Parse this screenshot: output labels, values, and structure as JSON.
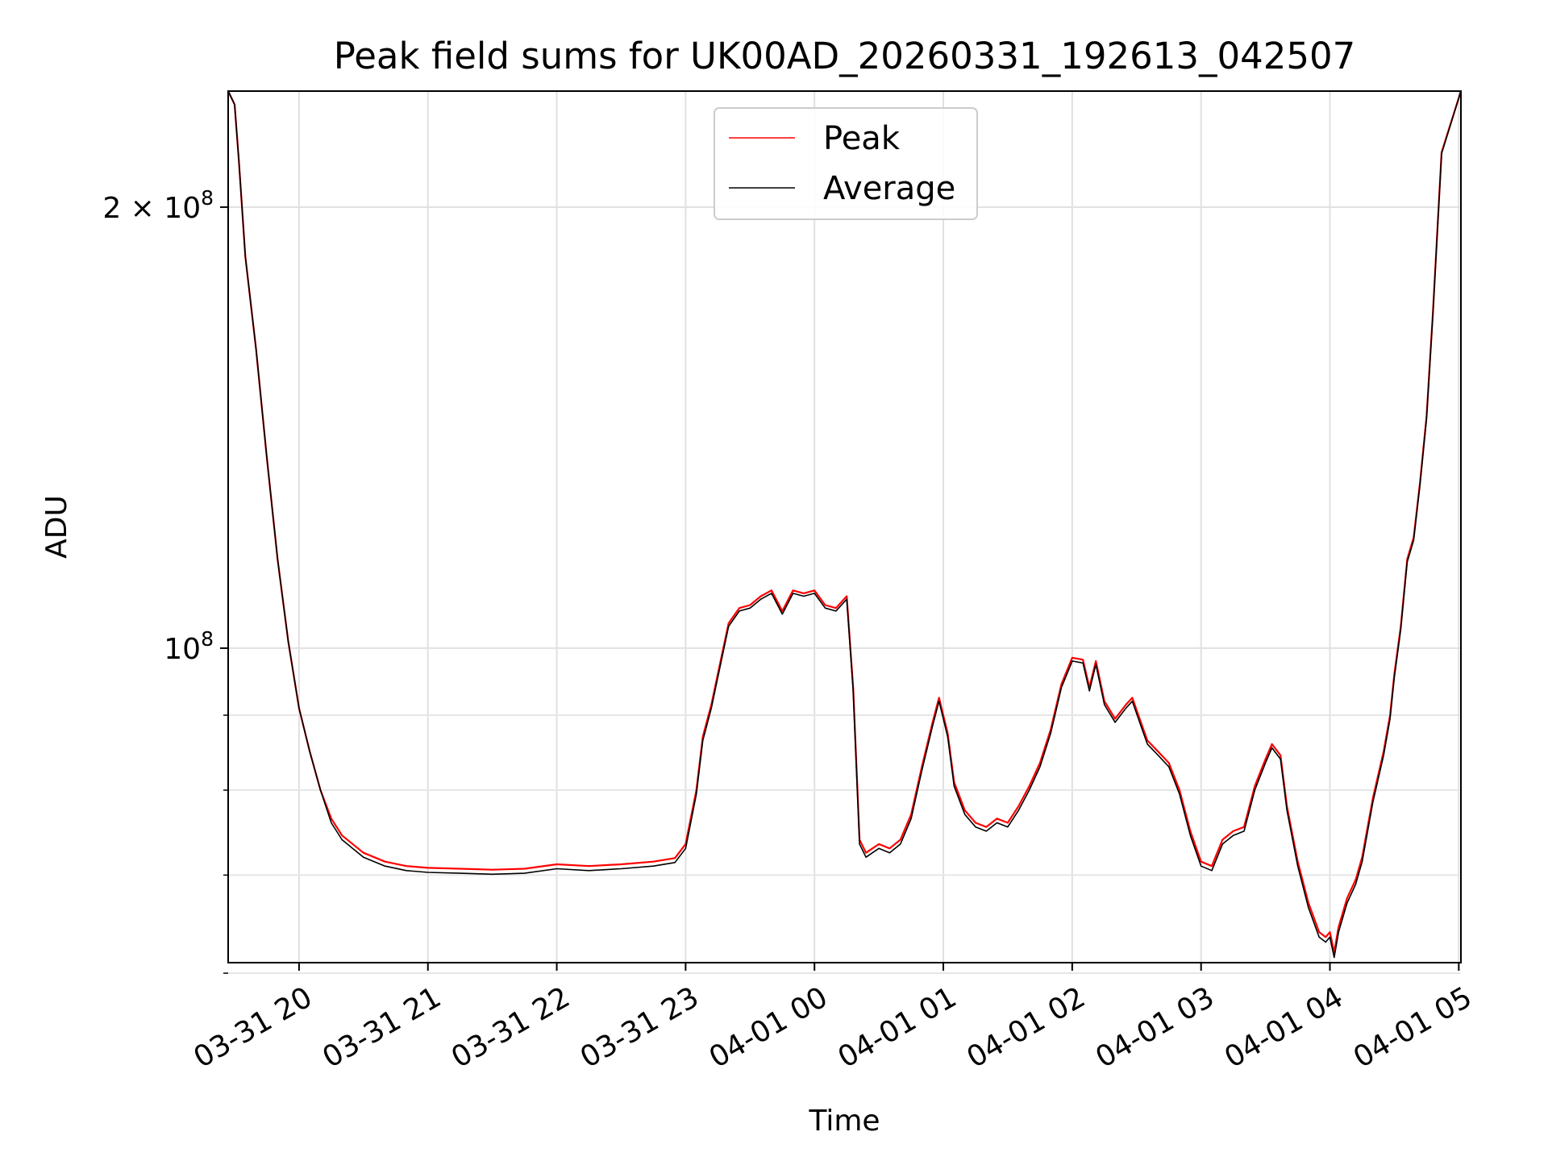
{
  "chart_data": {
    "type": "line",
    "title": "Peak field sums for UK00AD_20260331_192613_042507",
    "xlabel": "Time",
    "ylabel": "ADU",
    "y_scale": "log",
    "xlim": [
      "2026-03-31 19:27",
      "2026-04-01 05:01"
    ],
    "ylim": [
      61000000,
      240000000
    ],
    "grid": true,
    "legend_position": "top-center",
    "x_ticks": [
      "03-31 20",
      "03-31 21",
      "03-31 22",
      "03-31 23",
      "04-01 00",
      "04-01 01",
      "04-01 02",
      "04-01 03",
      "04-01 04",
      "04-01 05"
    ],
    "y_ticks": [
      {
        "value": 100000000,
        "base": "10",
        "exp": "8",
        "coef": ""
      },
      {
        "value": 200000000,
        "base": "10",
        "exp": "8",
        "coef": "2 × "
      }
    ],
    "x": [
      "2026-03-31 19:27",
      "2026-03-31 19:30",
      "2026-03-31 19:32",
      "2026-03-31 19:35",
      "2026-03-31 19:40",
      "2026-03-31 19:45",
      "2026-03-31 19:50",
      "2026-03-31 19:55",
      "2026-03-31 20:00",
      "2026-03-31 20:05",
      "2026-03-31 20:10",
      "2026-03-31 20:15",
      "2026-03-31 20:20",
      "2026-03-31 20:30",
      "2026-03-31 20:40",
      "2026-03-31 20:50",
      "2026-03-31 21:00",
      "2026-03-31 21:15",
      "2026-03-31 21:30",
      "2026-03-31 21:45",
      "2026-03-31 22:00",
      "2026-03-31 22:15",
      "2026-03-31 22:30",
      "2026-03-31 22:45",
      "2026-03-31 22:55",
      "2026-03-31 23:00",
      "2026-03-31 23:05",
      "2026-03-31 23:08",
      "2026-03-31 23:12",
      "2026-03-31 23:15",
      "2026-03-31 23:20",
      "2026-03-31 23:25",
      "2026-03-31 23:30",
      "2026-03-31 23:35",
      "2026-03-31 23:40",
      "2026-03-31 23:45",
      "2026-03-31 23:50",
      "2026-03-31 23:55",
      "2026-04-01 00:00",
      "2026-04-01 00:05",
      "2026-04-01 00:10",
      "2026-04-01 00:15",
      "2026-04-01 00:18",
      "2026-04-01 00:21",
      "2026-04-01 00:24",
      "2026-04-01 00:27",
      "2026-04-01 00:30",
      "2026-04-01 00:35",
      "2026-04-01 00:40",
      "2026-04-01 00:45",
      "2026-04-01 00:50",
      "2026-04-01 00:55",
      "2026-04-01 00:58",
      "2026-04-01 01:02",
      "2026-04-01 01:05",
      "2026-04-01 01:10",
      "2026-04-01 01:15",
      "2026-04-01 01:20",
      "2026-04-01 01:25",
      "2026-04-01 01:30",
      "2026-04-01 01:35",
      "2026-04-01 01:40",
      "2026-04-01 01:45",
      "2026-04-01 01:50",
      "2026-04-01 01:55",
      "2026-04-01 02:00",
      "2026-04-01 02:05",
      "2026-04-01 02:08",
      "2026-04-01 02:11",
      "2026-04-01 02:15",
      "2026-04-01 02:20",
      "2026-04-01 02:25",
      "2026-04-01 02:28",
      "2026-04-01 02:32",
      "2026-04-01 02:35",
      "2026-04-01 02:40",
      "2026-04-01 02:45",
      "2026-04-01 02:50",
      "2026-04-01 02:55",
      "2026-04-01 03:00",
      "2026-04-01 03:05",
      "2026-04-01 03:10",
      "2026-04-01 03:15",
      "2026-04-01 03:20",
      "2026-04-01 03:25",
      "2026-04-01 03:30",
      "2026-04-01 03:33",
      "2026-04-01 03:37",
      "2026-04-01 03:40",
      "2026-04-01 03:45",
      "2026-04-01 03:50",
      "2026-04-01 03:55",
      "2026-04-01 03:58",
      "2026-04-01 04:00",
      "2026-04-01 04:02",
      "2026-04-01 04:04",
      "2026-04-01 04:08",
      "2026-04-01 04:12",
      "2026-04-01 04:15",
      "2026-04-01 04:20",
      "2026-04-01 04:25",
      "2026-04-01 04:28",
      "2026-04-01 04:30",
      "2026-04-01 04:33",
      "2026-04-01 04:36",
      "2026-04-01 04:39",
      "2026-04-01 04:42",
      "2026-04-01 04:45",
      "2026-04-01 04:48",
      "2026-04-01 04:52",
      "2026-04-01 05:01"
    ],
    "series": [
      {
        "name": "Peak",
        "color": "#ff0000",
        "values": [
          240000000,
          235000000,
          215000000,
          185000000,
          160000000,
          135000000,
          115000000,
          101000000,
          91000000,
          85000000,
          80000000,
          76500000,
          74500000,
          72500000,
          71500000,
          71000000,
          70800000,
          70700000,
          70600000,
          70700000,
          71200000,
          71000000,
          71200000,
          71500000,
          71900000,
          73500000,
          80000000,
          87000000,
          91500000,
          96000000,
          104000000,
          106500000,
          107000000,
          108500000,
          109500000,
          106000000,
          109500000,
          109000000,
          109500000,
          107000000,
          106500000,
          108500000,
          94000000,
          74000000,
          72500000,
          73000000,
          73500000,
          73000000,
          74000000,
          77000000,
          83000000,
          89000000,
          92500000,
          87500000,
          81000000,
          77500000,
          76000000,
          75500000,
          76500000,
          76000000,
          78000000,
          80500000,
          83500000,
          88000000,
          94500000,
          98500000,
          98200000,
          94000000,
          98000000,
          92000000,
          89500000,
          91500000,
          92500000,
          89000000,
          86500000,
          85000000,
          83500000,
          80000000,
          75000000,
          71500000,
          71000000,
          74000000,
          75000000,
          75500000,
          80500000,
          84000000,
          86000000,
          84500000,
          78000000,
          71500000,
          67000000,
          64000000,
          63500000,
          64000000,
          62000000,
          64500000,
          67500000,
          69500000,
          72000000,
          79000000,
          85000000,
          90000000,
          96000000,
          103500000,
          115000000,
          119000000,
          130000000,
          144000000,
          170000000,
          218000000,
          240000000
        ]
      },
      {
        "name": "Average",
        "color": "#000000",
        "values": [
          240000000,
          235000000,
          215000000,
          185000000,
          160000000,
          135000000,
          115000000,
          101000000,
          91000000,
          85000000,
          80000000,
          76000000,
          74000000,
          72000000,
          71000000,
          70500000,
          70300000,
          70200000,
          70100000,
          70200000,
          70700000,
          70500000,
          70700000,
          71000000,
          71400000,
          73000000,
          79500000,
          86500000,
          91000000,
          95500000,
          103500000,
          106000000,
          106500000,
          108000000,
          109000000,
          105500000,
          109000000,
          108500000,
          109000000,
          106500000,
          106000000,
          108000000,
          93500000,
          73500000,
          72000000,
          72500000,
          73000000,
          72500000,
          73500000,
          76500000,
          82500000,
          88500000,
          92000000,
          87000000,
          80500000,
          77000000,
          75500000,
          75000000,
          76000000,
          75500000,
          77500000,
          80000000,
          83000000,
          87500000,
          94000000,
          98000000,
          97700000,
          93500000,
          97500000,
          91500000,
          89000000,
          91000000,
          92000000,
          88500000,
          86000000,
          84500000,
          83000000,
          79500000,
          74500000,
          71000000,
          70500000,
          73500000,
          74500000,
          75000000,
          80000000,
          83500000,
          85500000,
          84000000,
          77500000,
          71000000,
          66500000,
          63500000,
          63000000,
          63500000,
          61500000,
          64000000,
          67000000,
          69000000,
          71500000,
          78500000,
          84500000,
          89500000,
          95500000,
          103000000,
          114500000,
          118500000,
          129500000,
          143500000,
          169500000,
          217500000,
          240000000
        ]
      }
    ]
  }
}
